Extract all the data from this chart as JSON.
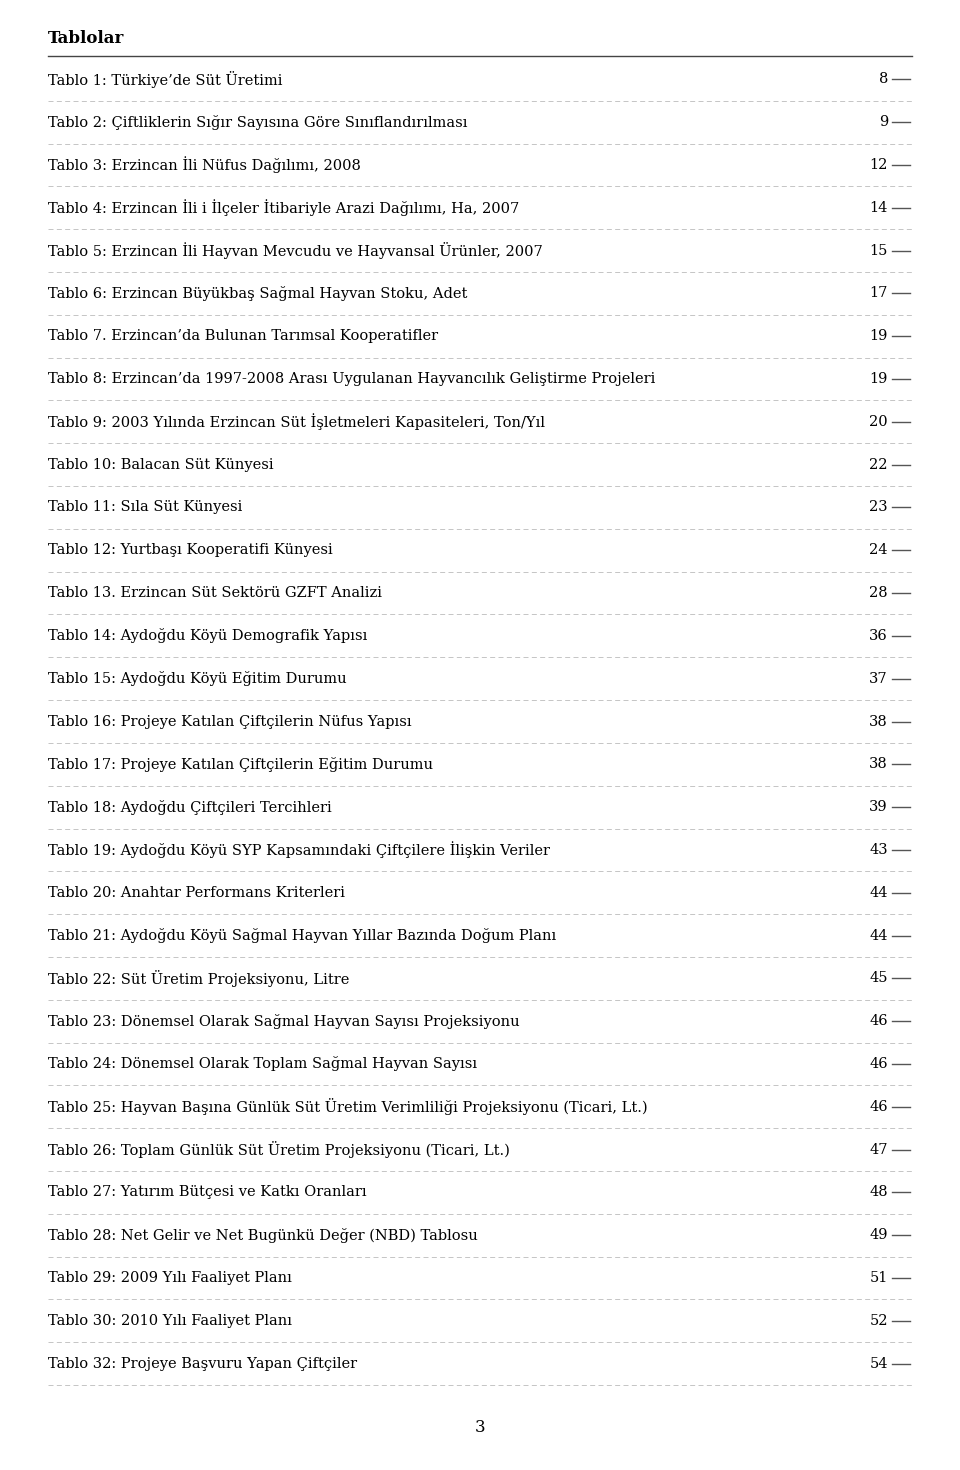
{
  "title": "Tablolar",
  "entries": [
    [
      "Tablo 1: Türkiye’de Süt Üretimi",
      "8"
    ],
    [
      "Tablo 2: Çiftliklerin Sığır Sayısına Göre Sınıflandırılması",
      "9"
    ],
    [
      "Tablo 3: Erzincan İli Nüfus Dağılımı, 2008",
      "12"
    ],
    [
      "Tablo 4: Erzincan İli i İlçeler İtibariyle Arazi Dağılımı, Ha, 2007",
      "14"
    ],
    [
      "Tablo 5: Erzincan İli Hayvan Mevcudu ve Hayvansal Ürünler, 2007",
      "15"
    ],
    [
      "Tablo 6: Erzincan Büyükbaş Sağmal Hayvan Stoku, Adet",
      "17"
    ],
    [
      "Tablo 7. Erzincan’da Bulunan Tarımsal Kooperatifler",
      "19"
    ],
    [
      "Tablo 8: Erzincan’da 1997-2008 Arası Uygulanan Hayvancılık Geliştirme Projeleri",
      "19"
    ],
    [
      "Tablo 9: 2003 Yılında Erzincan Süt İşletmeleri Kapasiteleri, Ton/Yıl",
      "20"
    ],
    [
      "Tablo 10: Balacan Süt Künyesi",
      "22"
    ],
    [
      "Tablo 11: Sıla Süt Künyesi",
      "23"
    ],
    [
      "Tablo 12: Yurtbaşı Kooperatifi Künyesi",
      "24"
    ],
    [
      "Tablo 13. Erzincan Süt Sektörü GZFT Analizi",
      "28"
    ],
    [
      "Tablo 14: Aydoğdu Köyü Demografik Yapısı",
      "36"
    ],
    [
      "Tablo 15: Aydoğdu Köyü Eğitim Durumu",
      "37"
    ],
    [
      "Tablo 16: Projeye Katılan Çiftçilerin Nüfus Yapısı",
      "38"
    ],
    [
      "Tablo 17: Projeye Katılan Çiftçilerin Eğitim Durumu",
      "38"
    ],
    [
      "Tablo 18: Aydoğdu Çiftçileri Tercihleri",
      "39"
    ],
    [
      "Tablo 19: Aydoğdu Köyü SYP Kapsamındaki Çiftçilere İlişkin Veriler",
      "43"
    ],
    [
      "Tablo 20: Anahtar Performans Kriterleri",
      "44"
    ],
    [
      "Tablo 21: Aydoğdu Köyü Sağmal Hayvan Yıllar Bazında Doğum Planı",
      "44"
    ],
    [
      "Tablo 22: Süt Üretim Projeksiyonu, Litre",
      "45"
    ],
    [
      "Tablo 23: Dönemsel Olarak Sağmal Hayvan Sayısı Projeksiyonu",
      "46"
    ],
    [
      "Tablo 24: Dönemsel Olarak Toplam Sağmal Hayvan Sayısı",
      "46"
    ],
    [
      "Tablo 25: Hayvan Başına Günlük Süt Üretim Verimliliği Projeksiyonu (Ticari, Lt.)",
      "46"
    ],
    [
      "Tablo 26: Toplam Günlük Süt Üretim Projeksiyonu (Ticari, Lt.)",
      "47"
    ],
    [
      "Tablo 27: Yatırım Bütçesi ve Katkı Oranları",
      "48"
    ],
    [
      "Tablo 28: Net Gelir ve Net Bugünkü Değer (NBD) Tablosu",
      "49"
    ],
    [
      "Tablo 29: 2009 Yılı Faaliyet Planı",
      "51"
    ],
    [
      "Tablo 30: 2010 Yılı Faaliyet Planı",
      "52"
    ],
    [
      "Tablo 32: Projeye Başvuru Yapan Çiftçiler",
      "54"
    ]
  ],
  "page_number": "3",
  "bg_color": "#ffffff",
  "text_color": "#000000",
  "line_color": "#bbbbbb",
  "title_fontsize": 12,
  "entry_fontsize": 10.5,
  "page_fontsize": 10.5
}
